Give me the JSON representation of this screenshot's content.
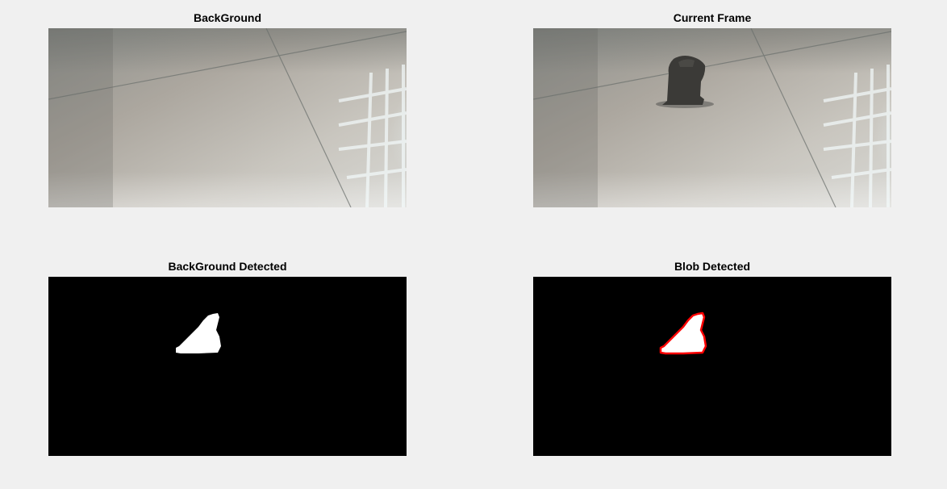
{
  "figure": {
    "background": "#f0f0f0",
    "subplots": [
      {
        "title": "BackGround",
        "content": "background-photo"
      },
      {
        "title": "Current Frame",
        "content": "current-frame-photo"
      },
      {
        "title": "BackGround Detected",
        "content": "binary-mask"
      },
      {
        "title": "Blob Detected",
        "content": "binary-mask-with-outline"
      }
    ]
  },
  "colors": {
    "mask_background": "#000000",
    "blob_fill": "#ffffff",
    "blob_outline": "#ff0000"
  }
}
